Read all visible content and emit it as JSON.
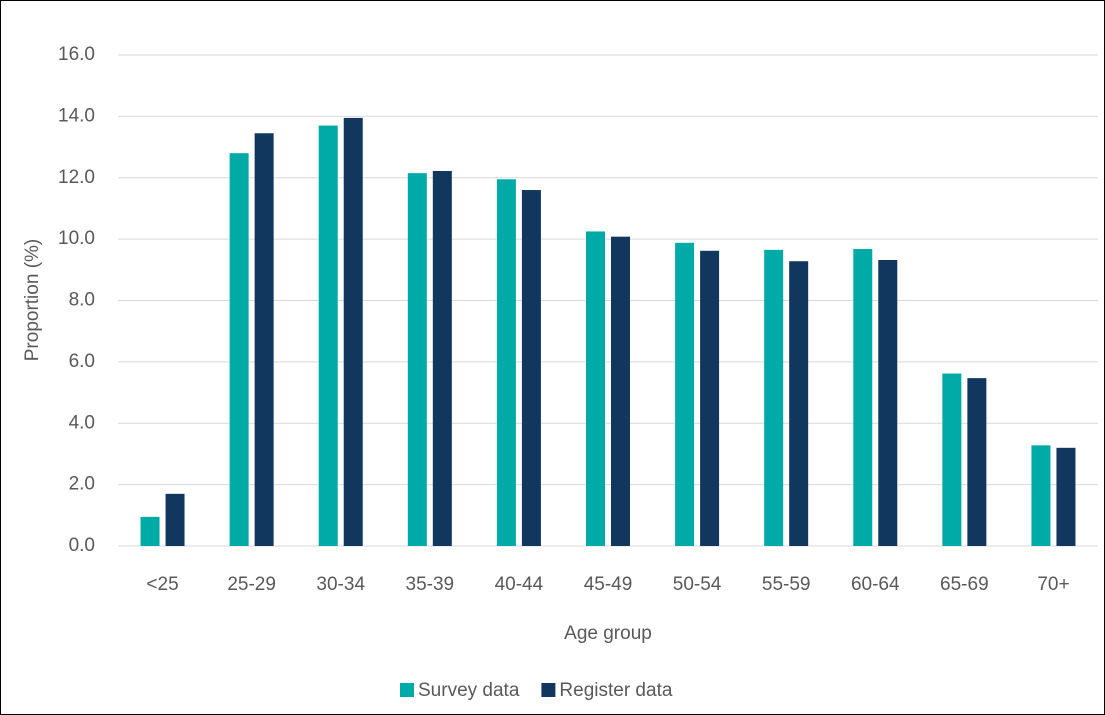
{
  "chart_data": {
    "type": "bar",
    "x_label": "Age group",
    "y_label": "Proportion (%)",
    "categories": [
      "<25",
      "25-29",
      "30-34",
      "35-39",
      "40-44",
      "45-49",
      "50-54",
      "55-59",
      "60-64",
      "65-69",
      "70+"
    ],
    "series": [
      {
        "name": "Survey data",
        "color": "#00aaa6",
        "values": [
          0.95,
          12.8,
          13.7,
          12.15,
          11.95,
          10.25,
          9.88,
          9.65,
          9.68,
          5.62,
          3.28
        ]
      },
      {
        "name": "Register data",
        "color": "#12375e",
        "values": [
          1.7,
          13.45,
          13.95,
          12.22,
          11.6,
          10.08,
          9.62,
          9.28,
          9.32,
          5.47,
          3.2
        ]
      }
    ],
    "ylim": [
      0,
      16
    ],
    "yticks": [
      {
        "value": 0,
        "label": "0.0"
      },
      {
        "value": 2,
        "label": "2.0"
      },
      {
        "value": 4,
        "label": "4.0"
      },
      {
        "value": 6,
        "label": "6.0"
      },
      {
        "value": 8,
        "label": "8.0"
      },
      {
        "value": 10,
        "label": "10.0"
      },
      {
        "value": 12,
        "label": "12.0"
      },
      {
        "value": 14,
        "label": "14.0"
      },
      {
        "value": 16,
        "label": "16.0"
      }
    ],
    "grid": true,
    "legend": "bottom"
  }
}
